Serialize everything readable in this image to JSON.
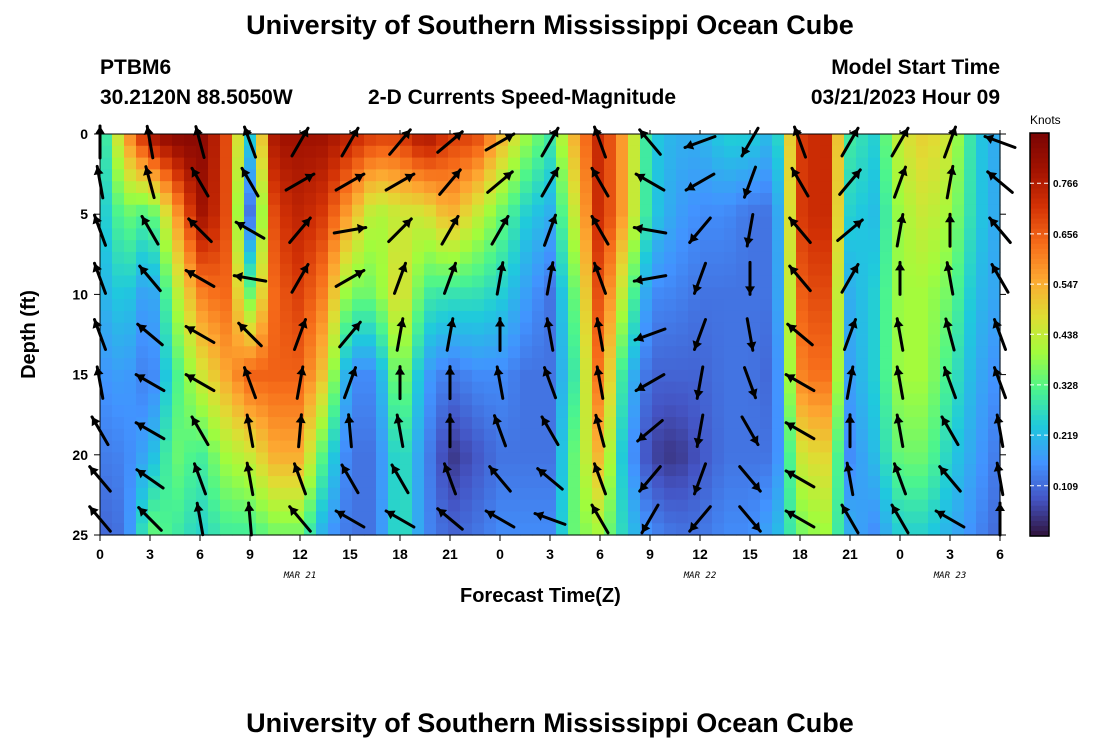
{
  "header": {
    "title": "University of Southern Mississippi Ocean Cube",
    "station": "PTBM6",
    "coordinates": "30.2120N  88.5050W",
    "product": "2-D Currents Speed-Magnitude",
    "model_start_label": "Model Start Time",
    "model_start_value": "03/21/2023 Hour 09",
    "footer_title": "University of Southern Mississippi Ocean Cube"
  },
  "chart_data": {
    "type": "heatmap",
    "title": "2-D Currents Speed-Magnitude",
    "xlabel": "Forecast Time(Z)",
    "ylabel": "Depth (ft)",
    "x_tick_labels": [
      "0",
      "3",
      "6",
      "9",
      "12",
      "15",
      "18",
      "21",
      "0",
      "3",
      "6",
      "9",
      "12",
      "15",
      "18",
      "21",
      "0",
      "3",
      "6"
    ],
    "x_range_hours": [
      0,
      54
    ],
    "day_labels": [
      {
        "text": "MAR 21",
        "hour": 12
      },
      {
        "text": "MAR 22",
        "hour": 36
      },
      {
        "text": "MAR 23",
        "hour": 51
      }
    ],
    "y_tick_labels": [
      "0",
      "5",
      "10",
      "15",
      "20",
      "25"
    ],
    "y_range_ft": [
      0,
      25
    ],
    "y_inverted": true,
    "colorbar": {
      "unit": "Knots",
      "tick_labels": [
        "0.766",
        "0.656",
        "0.547",
        "0.438",
        "0.328",
        "0.219",
        "0.109"
      ],
      "tick_values": [
        0.766,
        0.656,
        0.547,
        0.438,
        0.328,
        0.219,
        0.109
      ],
      "range": [
        0.0,
        0.875
      ],
      "colors": [
        "#30123b",
        "#4454c4",
        "#4293ff",
        "#1fc9dd",
        "#4cf58d",
        "#a2fc3c",
        "#e0dc33",
        "#fda731",
        "#f66b19",
        "#d23105",
        "#a11201",
        "#7a0403"
      ]
    },
    "speed_columns": [
      {
        "hour": 0,
        "profile": [
          0.22,
          0.22,
          0.2,
          0.16,
          0.13,
          0.1
        ]
      },
      {
        "hour": 1.5,
        "profile": [
          0.55,
          0.35,
          0.25,
          0.18,
          0.14,
          0.12
        ]
      },
      {
        "hour": 3,
        "profile": [
          0.8,
          0.3,
          0.15,
          0.12,
          0.2,
          0.35
        ]
      },
      {
        "hour": 4.5,
        "profile": [
          0.85,
          0.55,
          0.4,
          0.3,
          0.35,
          0.3
        ]
      },
      {
        "hour": 6,
        "profile": [
          0.85,
          0.8,
          0.6,
          0.45,
          0.3,
          0.25
        ]
      },
      {
        "hour": 7.5,
        "profile": [
          0.7,
          0.7,
          0.65,
          0.55,
          0.4,
          0.3
        ]
      },
      {
        "hour": 9,
        "profile": [
          0.25,
          0.12,
          0.35,
          0.65,
          0.45,
          0.3
        ]
      },
      {
        "hour": 10.5,
        "profile": [
          0.8,
          0.7,
          0.65,
          0.65,
          0.55,
          0.35
        ]
      },
      {
        "hour": 12,
        "profile": [
          0.8,
          0.75,
          0.7,
          0.65,
          0.55,
          0.35
        ]
      },
      {
        "hour": 13.5,
        "profile": [
          0.8,
          0.7,
          0.6,
          0.5,
          0.3,
          0.18
        ]
      },
      {
        "hour": 15,
        "profile": [
          0.75,
          0.55,
          0.35,
          0.15,
          0.12,
          0.12
        ]
      },
      {
        "hour": 16.5,
        "profile": [
          0.7,
          0.4,
          0.35,
          0.15,
          0.12,
          0.12
        ]
      },
      {
        "hour": 18,
        "profile": [
          0.7,
          0.45,
          0.5,
          0.4,
          0.3,
          0.3
        ]
      },
      {
        "hour": 19.5,
        "profile": [
          0.8,
          0.45,
          0.3,
          0.18,
          0.15,
          0.15
        ]
      },
      {
        "hour": 21,
        "profile": [
          0.7,
          0.55,
          0.28,
          0.12,
          0.04,
          0.1
        ]
      },
      {
        "hour": 22.5,
        "profile": [
          0.7,
          0.45,
          0.28,
          0.15,
          0.08,
          0.12
        ]
      },
      {
        "hour": 24,
        "profile": [
          0.55,
          0.35,
          0.25,
          0.15,
          0.12,
          0.15
        ]
      },
      {
        "hour": 25.5,
        "profile": [
          0.4,
          0.25,
          0.18,
          0.12,
          0.12,
          0.15
        ]
      },
      {
        "hour": 27,
        "profile": [
          0.3,
          0.2,
          0.12,
          0.12,
          0.12,
          0.15
        ]
      },
      {
        "hour": 28.5,
        "profile": [
          0.55,
          0.45,
          0.35,
          0.3,
          0.35,
          0.35
        ]
      },
      {
        "hour": 30,
        "profile": [
          0.75,
          0.75,
          0.7,
          0.65,
          0.55,
          0.4
        ]
      },
      {
        "hour": 31.5,
        "profile": [
          0.55,
          0.55,
          0.4,
          0.25,
          0.2,
          0.25
        ]
      },
      {
        "hour": 33,
        "profile": [
          0.25,
          0.25,
          0.15,
          0.1,
          0.06,
          0.15
        ]
      },
      {
        "hour": 34.5,
        "profile": [
          0.2,
          0.18,
          0.14,
          0.1,
          0.04,
          0.12
        ]
      },
      {
        "hour": 36,
        "profile": [
          0.2,
          0.15,
          0.12,
          0.1,
          0.08,
          0.12
        ]
      },
      {
        "hour": 37.5,
        "profile": [
          0.25,
          0.15,
          0.12,
          0.12,
          0.12,
          0.15
        ]
      },
      {
        "hour": 39,
        "profile": [
          0.25,
          0.12,
          0.12,
          0.12,
          0.12,
          0.15
        ]
      },
      {
        "hour": 40.5,
        "profile": [
          0.2,
          0.12,
          0.12,
          0.1,
          0.12,
          0.2
        ]
      },
      {
        "hour": 42,
        "profile": [
          0.7,
          0.7,
          0.65,
          0.6,
          0.45,
          0.35
        ]
      },
      {
        "hour": 43.5,
        "profile": [
          0.75,
          0.75,
          0.7,
          0.65,
          0.5,
          0.4
        ]
      },
      {
        "hour": 45,
        "profile": [
          0.3,
          0.25,
          0.2,
          0.18,
          0.15,
          0.2
        ]
      },
      {
        "hour": 46.5,
        "profile": [
          0.25,
          0.22,
          0.25,
          0.25,
          0.22,
          0.15
        ]
      },
      {
        "hour": 48,
        "profile": [
          0.45,
          0.4,
          0.4,
          0.4,
          0.35,
          0.25
        ]
      },
      {
        "hour": 49.5,
        "profile": [
          0.5,
          0.45,
          0.4,
          0.4,
          0.35,
          0.25
        ]
      },
      {
        "hour": 51,
        "profile": [
          0.45,
          0.4,
          0.35,
          0.3,
          0.25,
          0.2
        ]
      },
      {
        "hour": 52.5,
        "profile": [
          0.25,
          0.25,
          0.22,
          0.2,
          0.18,
          0.15
        ]
      },
      {
        "hour": 54,
        "profile": [
          0.18,
          0.18,
          0.18,
          0.15,
          0.12,
          0.1
        ]
      }
    ],
    "profile_depths_ft": [
      0,
      5,
      10,
      15,
      20,
      25
    ],
    "vectors": {
      "depths_ft": [
        0.5,
        3,
        6,
        9,
        12.5,
        15.5,
        18.5,
        21.5,
        24
      ],
      "hours": [
        0,
        3,
        6,
        9,
        12,
        15,
        18,
        21,
        24,
        27,
        30,
        33,
        36,
        39,
        42,
        45,
        48,
        51,
        54
      ],
      "direction_columns_deg": [
        [
          0,
          -10,
          -20,
          -20,
          -20,
          -10,
          -30,
          -40,
          -40
        ],
        [
          -10,
          -15,
          -30,
          -40,
          -50,
          -60,
          -60,
          -55,
          -45
        ],
        [
          -15,
          -30,
          -45,
          -60,
          -60,
          -60,
          -30,
          -20,
          -10
        ],
        [
          -20,
          -30,
          -60,
          -80,
          -45,
          -20,
          -10,
          -10,
          -5
        ],
        [
          30,
          60,
          40,
          30,
          20,
          10,
          5,
          -20,
          -40
        ],
        [
          30,
          60,
          80,
          60,
          40,
          20,
          -5,
          -30,
          -60
        ],
        [
          40,
          60,
          45,
          20,
          10,
          0,
          -10,
          -30,
          -60
        ],
        [
          50,
          40,
          30,
          20,
          10,
          0,
          0,
          -20,
          -50
        ],
        [
          60,
          50,
          30,
          10,
          0,
          -10,
          -20,
          -40,
          -60
        ],
        [
          30,
          30,
          20,
          10,
          -10,
          -20,
          -30,
          -50,
          -70
        ],
        [
          -20,
          -30,
          -30,
          -20,
          -10,
          -10,
          -15,
          -20,
          -30
        ],
        [
          -40,
          -60,
          -80,
          -100,
          -110,
          -120,
          -130,
          -140,
          -150
        ],
        [
          -110,
          -120,
          -140,
          -160,
          -160,
          -170,
          -170,
          -160,
          -140
        ],
        [
          -150,
          -160,
          -170,
          -180,
          -190,
          -200,
          -210,
          -220,
          -220
        ],
        [
          -20,
          -30,
          -40,
          -40,
          -50,
          -60,
          -60,
          -60,
          -60
        ],
        [
          30,
          40,
          50,
          30,
          20,
          10,
          0,
          -10,
          -30
        ],
        [
          30,
          20,
          10,
          0,
          -10,
          -10,
          -10,
          -20,
          -30
        ],
        [
          20,
          10,
          0,
          -10,
          -15,
          -20,
          -30,
          -40,
          -60
        ],
        [
          -70,
          -50,
          -40,
          -30,
          -20,
          -20,
          -10,
          -10,
          0
        ]
      ]
    }
  }
}
